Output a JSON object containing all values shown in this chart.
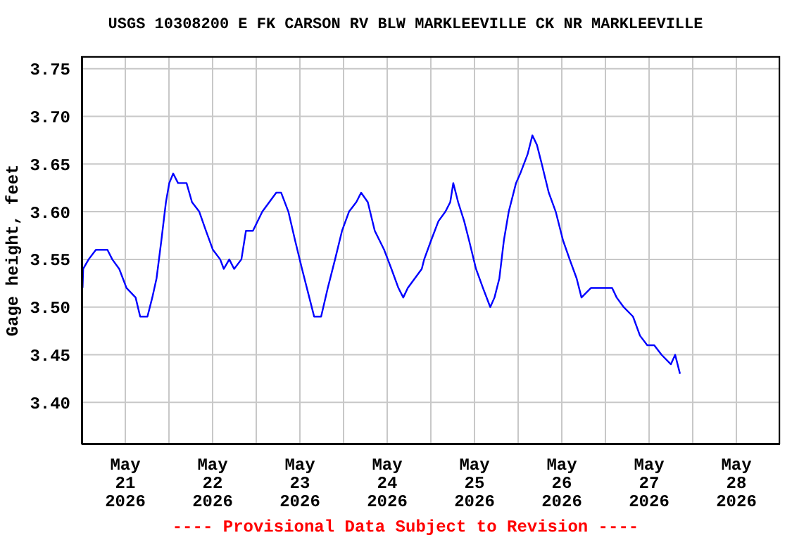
{
  "chart_data": {
    "type": "line",
    "title": "USGS 10308200 E FK CARSON RV BLW MARKLEEVILLE CK NR MARKLEEVILLE",
    "ylabel": "Gage height, feet",
    "annotations": [
      "---- Provisional Data Subject to Revision ----"
    ],
    "x": [
      "2026-05-21T00:15",
      "2026-05-21T00:25",
      "2026-05-21T01:55",
      "2026-05-21T03:55",
      "2026-05-21T07:05",
      "2026-05-21T08:25",
      "2026-05-21T10:20",
      "2026-05-21T12:20",
      "2026-05-21T14:50",
      "2026-05-21T16:05",
      "2026-05-21T18:05",
      "2026-05-21T19:25",
      "2026-05-21T20:35",
      "2026-05-21T21:55",
      "2026-05-21T23:10",
      "2026-05-22T00:05",
      "2026-05-22T01:10",
      "2026-05-22T02:30",
      "2026-05-22T04:50",
      "2026-05-22T06:20",
      "2026-05-22T08:20",
      "2026-05-22T10:10",
      "2026-05-22T12:05",
      "2026-05-22T14:05",
      "2026-05-22T15:05",
      "2026-05-22T16:35",
      "2026-05-22T17:55",
      "2026-05-22T19:55",
      "2026-05-22T21:10",
      "2026-05-22T23:05",
      "2026-05-23T01:40",
      "2026-05-23T03:35",
      "2026-05-23T05:30",
      "2026-05-23T06:50",
      "2026-05-23T08:50",
      "2026-05-23T10:40",
      "2026-05-23T12:35",
      "2026-05-23T14:35",
      "2026-05-23T15:55",
      "2026-05-23T17:50",
      "2026-05-23T19:40",
      "2026-05-23T21:40",
      "2026-05-23T23:35",
      "2026-05-24T01:30",
      "2026-05-24T03:30",
      "2026-05-24T04:50",
      "2026-05-24T06:40",
      "2026-05-24T08:35",
      "2026-05-24T11:10",
      "2026-05-24T13:10",
      "2026-05-24T15:05",
      "2026-05-24T16:25",
      "2026-05-24T17:40",
      "2026-05-24T19:35",
      "2026-05-24T21:30",
      "2026-05-24T22:10",
      "2026-05-25T00:05",
      "2026-05-25T02:05",
      "2026-05-25T04:00",
      "2026-05-25T05:20",
      "2026-05-25T06:10",
      "2026-05-25T07:30",
      "2026-05-25T09:10",
      "2026-05-25T10:30",
      "2026-05-25T12:25",
      "2026-05-25T14:20",
      "2026-05-25T16:20",
      "2026-05-25T17:30",
      "2026-05-25T18:50",
      "2026-05-25T20:05",
      "2026-05-25T21:25",
      "2026-05-25T23:25",
      "2026-05-26T00:35",
      "2026-05-26T02:35",
      "2026-05-26T03:55",
      "2026-05-26T05:10",
      "2026-05-26T06:30",
      "2026-05-26T08:25",
      "2026-05-26T10:20",
      "2026-05-26T12:20",
      "2026-05-26T14:10",
      "2026-05-26T16:05",
      "2026-05-26T17:25",
      "2026-05-26T20:00",
      "2026-05-26T22:35",
      "2026-05-27T01:50",
      "2026-05-27T03:05",
      "2026-05-27T05:00",
      "2026-05-27T07:35",
      "2026-05-27T09:30",
      "2026-05-27T11:30",
      "2026-05-27T13:25",
      "2026-05-27T15:25",
      "2026-05-27T18:00",
      "2026-05-27T19:10",
      "2026-05-27T20:30"
    ],
    "series": [
      {
        "color": "#0000ff",
        "values": [
          3.52,
          3.54,
          3.55,
          3.56,
          3.56,
          3.55,
          3.54,
          3.52,
          3.51,
          3.49,
          3.49,
          3.51,
          3.53,
          3.57,
          3.61,
          3.63,
          3.64,
          3.63,
          3.63,
          3.61,
          3.6,
          3.58,
          3.56,
          3.55,
          3.54,
          3.55,
          3.54,
          3.55,
          3.58,
          3.58,
          3.6,
          3.61,
          3.62,
          3.62,
          3.6,
          3.57,
          3.54,
          3.51,
          3.49,
          3.49,
          3.52,
          3.55,
          3.58,
          3.6,
          3.61,
          3.62,
          3.61,
          3.58,
          3.56,
          3.54,
          3.52,
          3.51,
          3.52,
          3.53,
          3.54,
          3.55,
          3.57,
          3.59,
          3.6,
          3.61,
          3.63,
          3.61,
          3.59,
          3.57,
          3.54,
          3.52,
          3.5,
          3.51,
          3.53,
          3.57,
          3.6,
          3.63,
          3.64,
          3.66,
          3.68,
          3.67,
          3.65,
          3.62,
          3.6,
          3.57,
          3.55,
          3.53,
          3.51,
          3.52,
          3.52,
          3.52,
          3.51,
          3.5,
          3.49,
          3.47,
          3.46,
          3.46,
          3.45,
          3.44,
          3.45,
          3.43
        ]
      }
    ],
    "xlim": [
      "2026-05-21T00:00",
      "2026-05-29T00:00"
    ],
    "xticks": [
      {
        "value": "2026-05-21T12:00",
        "label": "May\n21\n2026"
      },
      {
        "value": "2026-05-22T00:00",
        "label": null
      },
      {
        "value": "2026-05-22T12:00",
        "label": "May\n22\n2026"
      },
      {
        "value": "2026-05-23T00:00",
        "label": null
      },
      {
        "value": "2026-05-23T12:00",
        "label": "May\n23\n2026"
      },
      {
        "value": "2026-05-24T00:00",
        "label": null
      },
      {
        "value": "2026-05-24T12:00",
        "label": "May\n24\n2026"
      },
      {
        "value": "2026-05-25T00:00",
        "label": null
      },
      {
        "value": "2026-05-25T12:00",
        "label": "May\n25\n2026"
      },
      {
        "value": "2026-05-26T00:00",
        "label": null
      },
      {
        "value": "2026-05-26T12:00",
        "label": "May\n26\n2026"
      },
      {
        "value": "2026-05-27T00:00",
        "label": null
      },
      {
        "value": "2026-05-27T12:00",
        "label": "May\n27\n2026"
      },
      {
        "value": "2026-05-28T00:00",
        "label": null
      },
      {
        "value": "2026-05-28T12:00",
        "label": "May\n28\n2026"
      }
    ],
    "ylim": [
      3.356,
      3.763
    ],
    "yticks": [
      {
        "value": 3.4,
        "label": "3.40"
      },
      {
        "value": 3.45,
        "label": "3.45"
      },
      {
        "value": 3.5,
        "label": "3.50"
      },
      {
        "value": 3.55,
        "label": "3.55"
      },
      {
        "value": 3.6,
        "label": "3.60"
      },
      {
        "value": 3.65,
        "label": "3.65"
      },
      {
        "value": 3.7,
        "label": "3.70"
      },
      {
        "value": 3.75,
        "label": "3.75"
      }
    ],
    "grid": true,
    "legend": false,
    "marker": "none",
    "line_style": "solid"
  }
}
